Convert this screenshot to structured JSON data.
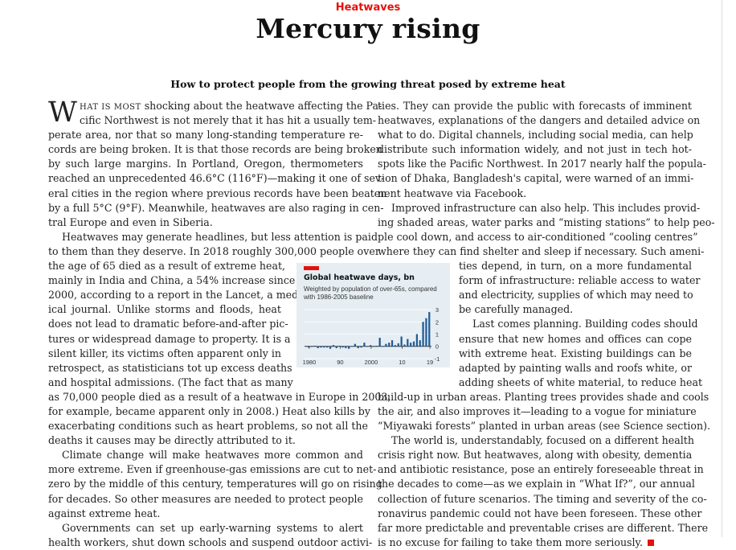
{
  "kicker": "Heatwaves",
  "headline": "Mercury rising",
  "standfirst": "How to protect people from the growing threat posed by extreme heat",
  "dropcap": "W",
  "smallcaps": "HAT IS MOST",
  "left_lines": [
    {
      "t": "shocking about the heatwave affecting the Pa-",
      "lead": true
    },
    {
      "t": "cific Northwest is not merely that it has hit a usually tem-",
      "drop": true
    },
    {
      "t": "perate area, nor that so many long-standing temperature re-"
    },
    {
      "t": "cords are being broken. It is that those records are being broken"
    },
    {
      "t": "by such large margins. In Portland, Oregon, thermometers"
    },
    {
      "t": "reached an unprecedented 46.6°C (116°F)—making it one of sev-"
    },
    {
      "t": "eral cities in the region where previous records have been beaten"
    },
    {
      "t": "by a full 5°C (9°F). Meanwhile, heatwaves are also raging in cen-"
    },
    {
      "t": "tral Europe and even in Siberia.",
      "last": true
    },
    {
      "t": "Heatwaves may generate headlines, but less attention is paid",
      "ind": true
    },
    {
      "t": "to them than they deserve. In 2018 roughly 300,000 people over"
    },
    {
      "t": "the age of 65 died as a result of extreme heat,",
      "n": true
    },
    {
      "t": "mainly in India and China, a 54% increase since",
      "n": true
    },
    {
      "t": "2000, according to a report in the Lancet, a med-",
      "n": true
    },
    {
      "t": "ical journal. Unlike storms and floods, heat",
      "n": true
    },
    {
      "t": "does not lead to dramatic before-and-after pic-",
      "n": true
    },
    {
      "t": "tures or widespread damage to property. It is a",
      "n": true
    },
    {
      "t": "silent killer, its victims often apparent only in",
      "n": true
    },
    {
      "t": "retrospect, as statisticians tot up excess deaths",
      "n": true
    },
    {
      "t": "and hospital admissions. (The fact that as many",
      "n": true
    },
    {
      "t": "as 70,000 people died as a result of a heatwave in Europe in 2003,"
    },
    {
      "t": "for example, became apparent only in 2008.) Heat also kills by"
    },
    {
      "t": "exacerbating conditions such as heart problems, so not all the"
    },
    {
      "t": "deaths it causes may be directly attributed to it.",
      "last": true
    },
    {
      "t": "Climate change will make heatwaves more common and",
      "ind": true
    },
    {
      "t": "more extreme. Even if greenhouse-gas emissions are cut to net-"
    },
    {
      "t": "zero by the middle of this century, temperatures will go on rising"
    },
    {
      "t": "for decades. So other measures are needed to protect people"
    },
    {
      "t": "against extreme heat.",
      "last": true
    },
    {
      "t": "Governments can set up early-warning systems to alert",
      "ind": true
    },
    {
      "t": "health workers, shut down schools and suspend outdoor activi-"
    }
  ],
  "right_lines": [
    {
      "t": "ties. They can provide the public with forecasts of imminent"
    },
    {
      "t": "heatwaves, explanations of the dangers and detailed advice on"
    },
    {
      "t": "what to do. Digital channels, including social media, can help"
    },
    {
      "t": "distribute such information widely, and not just in tech hot-"
    },
    {
      "t": "spots like the Pacific Northwest. In 2017 nearly half the popula-"
    },
    {
      "t": "tion of Dhaka, Bangladesh's capital, were warned of an immi-"
    },
    {
      "t": "nent heatwave via Facebook.",
      "last": true
    },
    {
      "t": "Improved infrastructure can also help. This includes provid-",
      "ind": true
    },
    {
      "t": "ing shaded areas, water parks and “misting stations” to help peo-"
    },
    {
      "t": "ple cool down, and access to air-conditioned “cooling centres”"
    },
    {
      "t": "where they can find shelter and sleep if necessary. Such ameni-"
    },
    {
      "t": "ties depend, in turn, on a more fundamental",
      "w": true
    },
    {
      "t": "form of infrastructure: reliable access to water",
      "w": true
    },
    {
      "t": "and electricity, supplies of which may need to",
      "w": true
    },
    {
      "t": "be carefully managed.",
      "w": true,
      "last": true
    },
    {
      "t": "Last comes planning. Building codes should",
      "w": true,
      "ind": true
    },
    {
      "t": "ensure that new homes and offices can cope",
      "w": true
    },
    {
      "t": "with extreme heat. Existing buildings can be",
      "w": true
    },
    {
      "t": "adapted by painting walls and roofs white, or",
      "w": true
    },
    {
      "t": "adding sheets of white material, to reduce heat",
      "w": true
    },
    {
      "t": "build-up in urban areas. Planting trees provides shade and cools"
    },
    {
      "t": "the air, and also improves it—leading to a vogue for miniature"
    },
    {
      "t": "“Miyawaki forests” planted in urban areas (see Science section)."
    },
    {
      "t": "The world is, understandably, focused on a different health",
      "ind": true
    },
    {
      "t": "crisis right now. But heatwaves, along with obesity, dementia"
    },
    {
      "t": "and antibiotic resistance, pose an entirely foreseeable threat in"
    },
    {
      "t": "the decades to come—as we explain in “What If?”, our annual"
    },
    {
      "t": "collection of future scenarios. The timing and severity of the co-"
    },
    {
      "t": "ronavirus pandemic could not have been foreseen. These other"
    },
    {
      "t": "far more predictable and preventable crises are different. There"
    },
    {
      "t": "is no excuse for failing to take them more seriously.",
      "last": true,
      "end": true
    }
  ],
  "chart_data": {
    "type": "bar",
    "title": "Global heatwave days, bn",
    "subtitle": "Weighted by population of over-65s, compared with 1986-2005 baseline",
    "x": [
      1980,
      1981,
      1982,
      1983,
      1984,
      1985,
      1986,
      1987,
      1988,
      1989,
      1990,
      1991,
      1992,
      1993,
      1994,
      1995,
      1996,
      1997,
      1998,
      1999,
      2000,
      2001,
      2002,
      2003,
      2004,
      2005,
      2006,
      2007,
      2008,
      2009,
      2010,
      2011,
      2012,
      2013,
      2014,
      2015,
      2016,
      2017,
      2018,
      2019
    ],
    "values": [
      -0.1,
      -0.05,
      0.05,
      -0.15,
      -0.1,
      -0.1,
      -0.1,
      -0.2,
      0.1,
      -0.15,
      0.05,
      -0.1,
      -0.15,
      -0.2,
      0.0,
      0.2,
      -0.15,
      -0.1,
      0.3,
      0.0,
      0.1,
      -0.05,
      0.05,
      0.7,
      0.0,
      0.2,
      0.3,
      0.5,
      0.1,
      0.25,
      0.8,
      0.15,
      0.6,
      0.3,
      0.4,
      1.0,
      0.5,
      2.0,
      2.3,
      2.8
    ],
    "yticks": [
      -1,
      0,
      1,
      2,
      3
    ],
    "xticklabels": [
      "1980",
      "90",
      "2000",
      "10",
      "19"
    ],
    "ylim": [
      -1.2,
      3.2
    ],
    "color": "#1f5c99"
  }
}
